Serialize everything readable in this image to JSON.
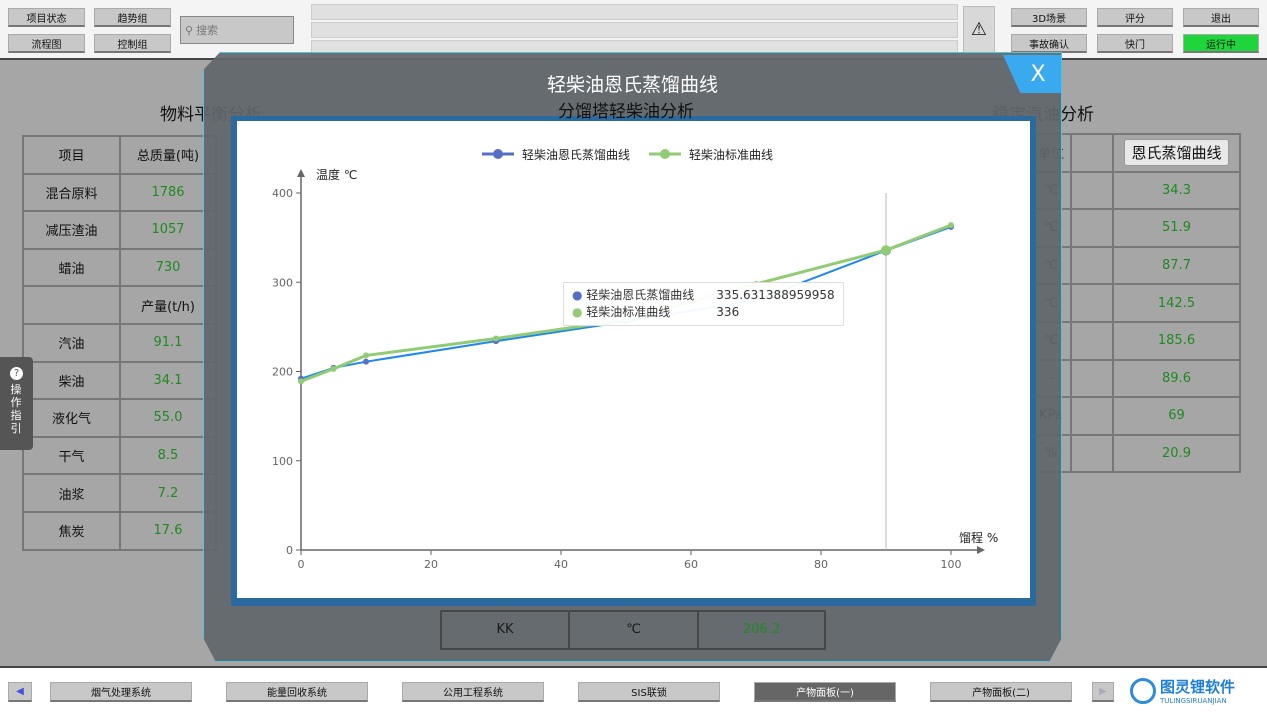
{
  "topbar": {
    "buttons": [
      "项目状态",
      "趋势组",
      "流程图",
      "控制组"
    ],
    "search_placeholder": "搜索",
    "right_buttons": [
      "3D场景",
      "评分",
      "退出",
      "事故确认",
      "快门",
      "运行中"
    ],
    "running_color": "#1ed63c"
  },
  "sections": {
    "left": "物料平衡分析",
    "center": "分馏塔轻柴油分析",
    "right": "稳定汽油分析"
  },
  "left_table": {
    "headers": [
      "项目",
      "总质量(吨)"
    ],
    "rows": [
      [
        "混合原料",
        "1786"
      ],
      [
        "减压渣油",
        "1057"
      ],
      [
        "蜡油",
        "730"
      ],
      [
        "",
        "产量(t/h)"
      ],
      [
        "汽油",
        "91.1"
      ],
      [
        "柴油",
        "34.1"
      ],
      [
        "液化气",
        "55.0"
      ],
      [
        "干气",
        "8.5"
      ],
      [
        "油浆",
        "7.2"
      ],
      [
        "焦炭",
        "17.6"
      ]
    ]
  },
  "right_table": {
    "header_unit": "单位",
    "curve_button": "恩氏蒸馏曲线",
    "rows": [
      [
        "℃",
        "34.3"
      ],
      [
        "℃",
        "51.9"
      ],
      [
        "℃",
        "87.7"
      ],
      [
        "℃",
        "142.5"
      ],
      [
        "℃",
        "185.6"
      ],
      [
        "-",
        "89.6"
      ],
      [
        "KPa",
        "69"
      ],
      [
        "%",
        "20.9"
      ]
    ]
  },
  "center_bottom_row": [
    "KK",
    "℃",
    "206.2"
  ],
  "guide": {
    "label": "操作指引"
  },
  "modal": {
    "title": "轻柴油恩氏蒸馏曲线",
    "close_label": "X"
  },
  "chart_data": {
    "type": "line",
    "xlabel": "馏程 %",
    "ylabel": "温度 ℃",
    "xlim": [
      0,
      100
    ],
    "ylim": [
      0,
      400
    ],
    "xticks": [
      "0",
      "20",
      "40",
      "60",
      "80",
      "100"
    ],
    "yticks": [
      "0",
      "100",
      "200",
      "300",
      "400"
    ],
    "legend": "top",
    "grid": false,
    "x": [
      0,
      5,
      10,
      30,
      50,
      70,
      90,
      100
    ],
    "series": [
      {
        "name": "轻柴油恩氏蒸馏曲线",
        "color": "#1e88f0",
        "marker_color": "#5470c6",
        "values": [
          192,
          204,
          211,
          234,
          256,
          280,
          335.6,
          362
        ]
      },
      {
        "name": "轻柴油标准曲线",
        "color": "#91cc75",
        "values": [
          189,
          203,
          218,
          237,
          258,
          298,
          336,
          364
        ]
      }
    ],
    "tooltip": {
      "rows": [
        [
          "轻柴油恩氏蒸馏曲线",
          "335.631388959958"
        ],
        [
          "轻柴油标准曲线",
          "336"
        ]
      ],
      "x": 90
    }
  },
  "bottom_nav": [
    "烟气处理系统",
    "能量回收系统",
    "公用工程系统",
    "SIS联锁",
    "产物面板(一)",
    "产物面板(二)"
  ],
  "logo": {
    "name": "图灵锂软件",
    "sub": "TULINGSIRUANJIAN"
  }
}
